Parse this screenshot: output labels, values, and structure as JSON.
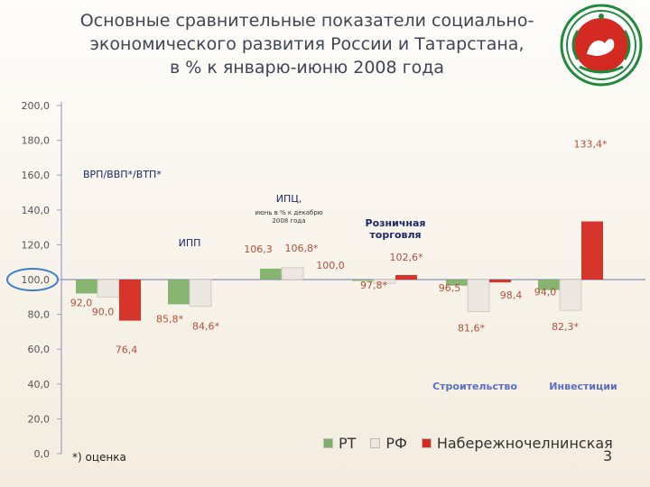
{
  "title": {
    "line1": "Основные сравнительные показатели социально-",
    "line2": "экономического развития России и Татарстана,",
    "line3": "в % к январю-июню 2008 года"
  },
  "chart_data": {
    "type": "bar",
    "baseline": 100.0,
    "ylim": [
      0,
      200
    ],
    "yticks": [
      "0,0",
      "20,0",
      "40,0",
      "60,0",
      "80,0",
      "100,0",
      "120,0",
      "140,0",
      "160,0",
      "180,0",
      "200,0"
    ],
    "category_labels": [
      {
        "text": "ВРП/ВВП*/ВТП*",
        "sub": ""
      },
      {
        "text": "ИПП",
        "sub": ""
      },
      {
        "text": "ИПЦ,",
        "sub": "июнь в % к декабрю 2008 года"
      },
      {
        "text": "Розничная торговля",
        "sub": ""
      },
      {
        "text": "Строительство",
        "sub": ""
      },
      {
        "text": "Инвестиции",
        "sub": ""
      }
    ],
    "series": [
      {
        "name": "РТ",
        "color": "#7fb06a",
        "values": [
          92.0,
          85.8,
          106.3,
          100.0,
          96.5,
          94.0
        ],
        "labels": [
          "92,0",
          "85,8*",
          "106,3",
          "100,0",
          "96,5",
          "94,0"
        ]
      },
      {
        "name": "РФ",
        "color": "#ece8e1",
        "values": [
          90.0,
          84.6,
          106.8,
          97.8,
          81.6,
          82.3
        ],
        "labels": [
          "90,0",
          "84,6*",
          "106,8*",
          "97,8*",
          "81,6*",
          "82,3*"
        ]
      },
      {
        "name": "Набережночелнинская",
        "color": "#d42a22",
        "values": [
          76.4,
          null,
          null,
          102.6,
          98.4,
          133.4
        ],
        "labels": [
          "76,4",
          "",
          "",
          "102,6*",
          "98,4",
          "133,4*"
        ]
      }
    ]
  },
  "legend": {
    "items": [
      {
        "name": "РТ",
        "color": "#7fb06a"
      },
      {
        "name": "РФ",
        "color": "#ece8e1"
      },
      {
        "name": "Набережночелнинская",
        "color": "#d42a22"
      }
    ]
  },
  "footnote": "*) оценка",
  "page_number": "3",
  "colors": {
    "axis": "#9aa0c4",
    "tick_text": "#555",
    "value_text": "#b0503c",
    "category_text": "#5a6fc4"
  }
}
